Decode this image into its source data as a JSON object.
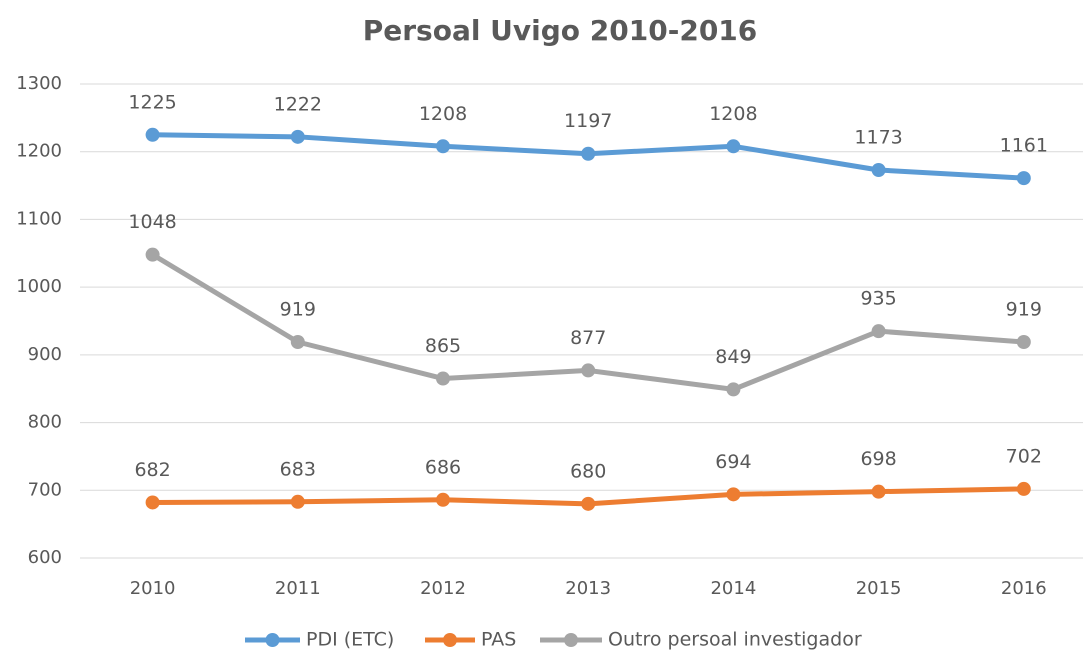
{
  "chart_data": {
    "type": "line",
    "title": "Persoal Uvigo 2010-2016",
    "categories": [
      "2010",
      "2011",
      "2012",
      "2013",
      "2014",
      "2015",
      "2016"
    ],
    "series": [
      {
        "name": "PDI (ETC)",
        "color": "#5b9bd5",
        "values": [
          1225,
          1222,
          1208,
          1197,
          1208,
          1173,
          1161
        ]
      },
      {
        "name": "PAS",
        "color": "#ed7d31",
        "values": [
          682,
          683,
          686,
          680,
          694,
          698,
          702
        ]
      },
      {
        "name": "Outro persoal investigador",
        "color": "#a5a5a5",
        "values": [
          1048,
          919,
          865,
          877,
          849,
          935,
          919
        ]
      }
    ],
    "ylim": [
      600,
      1300
    ],
    "yticks": [
      600,
      700,
      800,
      900,
      1000,
      1100,
      1200,
      1300
    ],
    "grid": true,
    "legend": "bottom"
  }
}
